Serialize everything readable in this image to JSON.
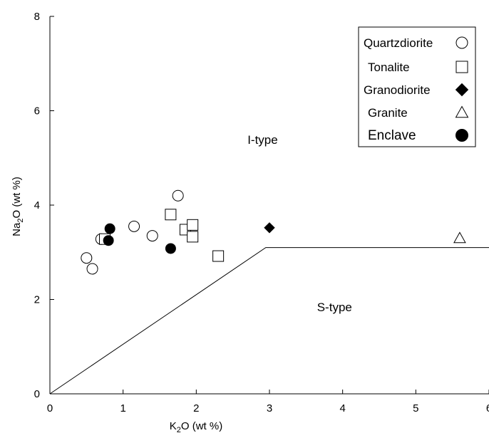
{
  "chart_data": {
    "type": "scatter",
    "title": "",
    "xlabel": {
      "base": "K",
      "sub": "2",
      "rest": "O  (wt %)"
    },
    "ylabel": {
      "base": "Na",
      "sub": "2",
      "rest": "O  (wt %)"
    },
    "xlim": [
      0,
      6
    ],
    "ylim": [
      0,
      8
    ],
    "x_ticks": [
      0,
      1,
      2,
      3,
      4,
      5,
      6
    ],
    "y_ticks": [
      0,
      2,
      4,
      6,
      8
    ],
    "x_tick_labels": [
      "0",
      "1",
      "2",
      "3",
      "4",
      "5",
      "6"
    ],
    "y_tick_labels": [
      "0",
      "2",
      "4",
      "6",
      "8"
    ],
    "grid": false,
    "legend_position": "top-right",
    "boundary_line": {
      "x": [
        0,
        2.95,
        6
      ],
      "y": [
        0,
        3.1,
        3.1
      ]
    },
    "region_labels": [
      {
        "text": "I-type",
        "x": 2.7,
        "y": 5.3
      },
      {
        "text": "S-type",
        "x": 3.65,
        "y": 1.75
      }
    ],
    "series": [
      {
        "name": "Quartzdiorite",
        "marker": "circle-open",
        "points": [
          [
            0.5,
            2.88
          ],
          [
            0.58,
            2.65
          ],
          [
            0.7,
            3.28
          ],
          [
            1.15,
            3.55
          ],
          [
            1.4,
            3.35
          ],
          [
            1.75,
            4.2
          ]
        ]
      },
      {
        "name": "Tonalite",
        "marker": "square-open",
        "points": [
          [
            0.75,
            3.28
          ],
          [
            1.65,
            3.8
          ],
          [
            1.85,
            3.48
          ],
          [
            1.95,
            3.58
          ],
          [
            1.95,
            3.33
          ],
          [
            2.3,
            2.92
          ]
        ]
      },
      {
        "name": "Granodiorite",
        "marker": "diamond-filled",
        "points": [
          [
            3.0,
            3.52
          ]
        ]
      },
      {
        "name": "Granite",
        "marker": "triangle-open",
        "points": [
          [
            5.6,
            3.3
          ]
        ]
      },
      {
        "name": "Enclave",
        "marker": "circle-filled",
        "points": [
          [
            0.82,
            3.5
          ],
          [
            0.8,
            3.25
          ],
          [
            1.65,
            3.08
          ]
        ]
      }
    ]
  }
}
